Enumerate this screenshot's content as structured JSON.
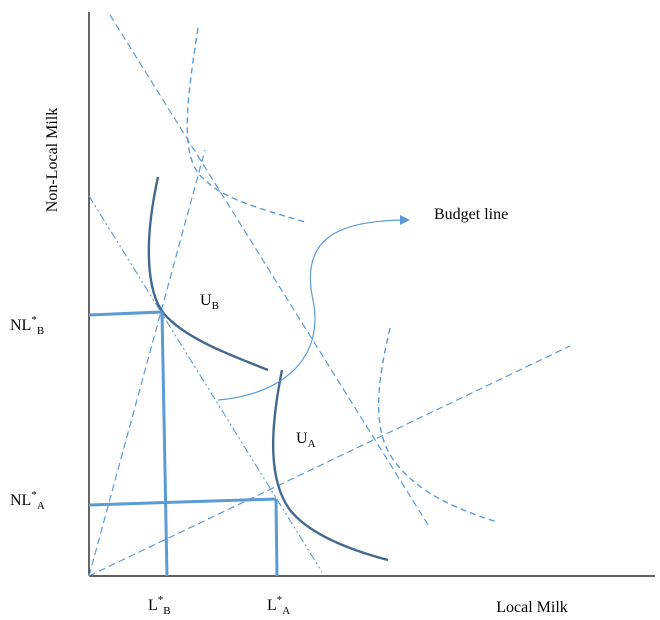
{
  "axes": {
    "x_label": "Local Milk",
    "y_label": "Non-Local Milk"
  },
  "labels": {
    "budget_line": "Budget line",
    "u_b": {
      "main": "U",
      "sub": "B"
    },
    "u_a": {
      "main": "U",
      "sub": "A"
    },
    "nl_b": {
      "main": "NL",
      "sup": "*",
      "sub": "B"
    },
    "nl_a": {
      "main": "NL",
      "sup": "*",
      "sub": "A"
    },
    "l_b": {
      "main": "L",
      "sup": "*",
      "sub": "B"
    },
    "l_a": {
      "main": "L",
      "sup": "*",
      "sub": "A"
    }
  },
  "colors": {
    "axis": "#000000",
    "dashed_line": "#5b9bd5",
    "indifference_curve": "#44698f",
    "equilibrium_line": "#5b9bd5",
    "annotation_arrow": "#5b9bd5"
  }
}
